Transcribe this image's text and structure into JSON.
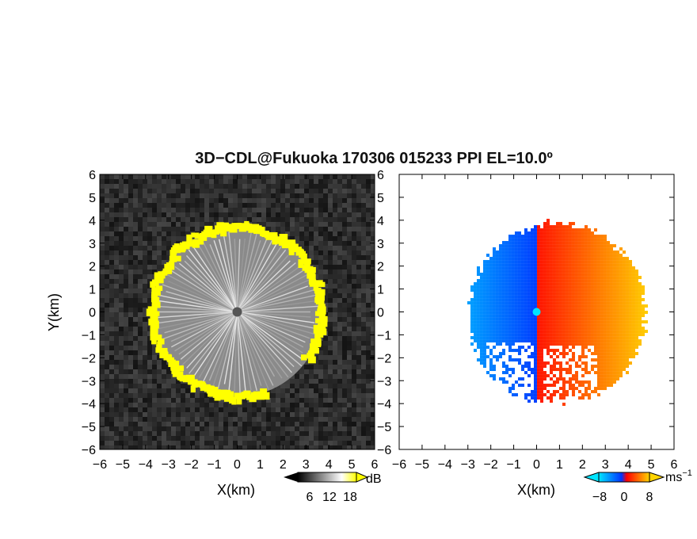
{
  "chart_data": {
    "type": "heatmap",
    "title": "3D−CDL@Fukuoka 170306 015233 PPI EL=10.0º",
    "panels": [
      {
        "id": "intensity",
        "xlabel": "X(km)",
        "ylabel": "Y(km)",
        "xlim": [
          -6,
          6
        ],
        "ylim": [
          -6,
          6
        ],
        "xticks": [
          "−6",
          "−5",
          "−4",
          "−3",
          "−2",
          "−1",
          "0",
          "1",
          "2",
          "3",
          "4",
          "5",
          "6"
        ],
        "yticks": [
          "6",
          "5",
          "4",
          "3",
          "2",
          "1",
          "0",
          "−1",
          "−2",
          "−3",
          "−4",
          "−5",
          "−6"
        ],
        "ring_radius_km": 3.7,
        "colorbar": {
          "unit": "dB",
          "ticks": [
            "6",
            "12",
            "18"
          ],
          "colors": [
            "#000000",
            "#ffffff",
            "#ffff00"
          ]
        }
      },
      {
        "id": "velocity",
        "xlabel": "X(km)",
        "ylabel": "",
        "xlim": [
          -6,
          6
        ],
        "ylim": [
          -6,
          6
        ],
        "xticks": [
          "−6",
          "−5",
          "−4",
          "−3",
          "−2",
          "−1",
          "0",
          "1",
          "2",
          "3",
          "4",
          "5",
          "6"
        ],
        "yticks": [
          "6",
          "5",
          "4",
          "3",
          "2",
          "1",
          "0",
          "−1",
          "−2",
          "−3",
          "−4",
          "−5",
          "−6"
        ],
        "radius_km": 4.2,
        "colorbar": {
          "unit": "ms",
          "unit_sup": "−1",
          "ticks": [
            "−8",
            "0",
            "8"
          ],
          "colors": [
            "#00e5ff",
            "#0033ff",
            "#ff0000",
            "#ffd400"
          ]
        }
      }
    ]
  }
}
